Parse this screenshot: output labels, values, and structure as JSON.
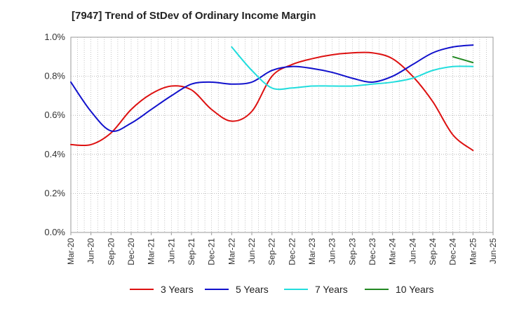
{
  "chart_data": {
    "type": "line",
    "title": "[7947]  Trend of StDev of Ordinary Income Margin",
    "xlabel": "",
    "ylabel": "",
    "ylim": [
      0,
      1.0
    ],
    "y_ticks": [
      "0.0%",
      "0.2%",
      "0.4%",
      "0.6%",
      "0.8%",
      "1.0%"
    ],
    "y_tick_values": [
      0,
      0.2,
      0.4,
      0.6,
      0.8,
      1.0
    ],
    "x_ticks": [
      "Mar-20",
      "Jun-20",
      "Sep-20",
      "Dec-20",
      "Mar-21",
      "Jun-21",
      "Sep-21",
      "Dec-21",
      "Mar-22",
      "Jun-22",
      "Sep-22",
      "Dec-22",
      "Mar-23",
      "Jun-23",
      "Sep-23",
      "Dec-23",
      "Mar-24",
      "Jun-24",
      "Sep-24",
      "Dec-24",
      "Mar-25",
      "Jun-25"
    ],
    "grid": true,
    "legend_position": "bottom",
    "series": [
      {
        "name": "3 Years",
        "color": "#dd1111",
        "x": [
          "Mar-20",
          "Jun-20",
          "Sep-20",
          "Dec-20",
          "Mar-21",
          "Jun-21",
          "Sep-21",
          "Dec-21",
          "Mar-22",
          "Jun-22",
          "Sep-22",
          "Dec-22",
          "Mar-23",
          "Jun-23",
          "Sep-23",
          "Dec-23",
          "Mar-24",
          "Jun-24",
          "Sep-24",
          "Dec-24",
          "Mar-25"
        ],
        "values": [
          0.45,
          0.45,
          0.51,
          0.63,
          0.71,
          0.75,
          0.73,
          0.63,
          0.57,
          0.62,
          0.8,
          0.86,
          0.89,
          0.91,
          0.92,
          0.92,
          0.89,
          0.8,
          0.67,
          0.5,
          0.42
        ]
      },
      {
        "name": "5 Years",
        "color": "#1111cc",
        "x": [
          "Mar-20",
          "Jun-20",
          "Sep-20",
          "Dec-20",
          "Mar-21",
          "Jun-21",
          "Sep-21",
          "Dec-21",
          "Mar-22",
          "Jun-22",
          "Sep-22",
          "Dec-22",
          "Mar-23",
          "Jun-23",
          "Sep-23",
          "Dec-23",
          "Mar-24",
          "Jun-24",
          "Sep-24",
          "Dec-24",
          "Mar-25"
        ],
        "values": [
          0.77,
          0.62,
          0.52,
          0.56,
          0.63,
          0.7,
          0.76,
          0.77,
          0.76,
          0.77,
          0.83,
          0.85,
          0.84,
          0.82,
          0.79,
          0.77,
          0.8,
          0.86,
          0.92,
          0.95,
          0.96
        ]
      },
      {
        "name": "7 Years",
        "color": "#22dddd",
        "x": [
          "Mar-22",
          "Jun-22",
          "Sep-22",
          "Dec-22",
          "Mar-23",
          "Jun-23",
          "Sep-23",
          "Dec-23",
          "Mar-24",
          "Jun-24",
          "Sep-24",
          "Dec-24",
          "Mar-25"
        ],
        "values": [
          0.95,
          0.83,
          0.74,
          0.74,
          0.75,
          0.75,
          0.75,
          0.76,
          0.77,
          0.79,
          0.83,
          0.85,
          0.85
        ]
      },
      {
        "name": "10 Years",
        "color": "#228822",
        "x": [
          "Dec-24",
          "Mar-25"
        ],
        "values": [
          0.9,
          0.87
        ]
      }
    ]
  }
}
